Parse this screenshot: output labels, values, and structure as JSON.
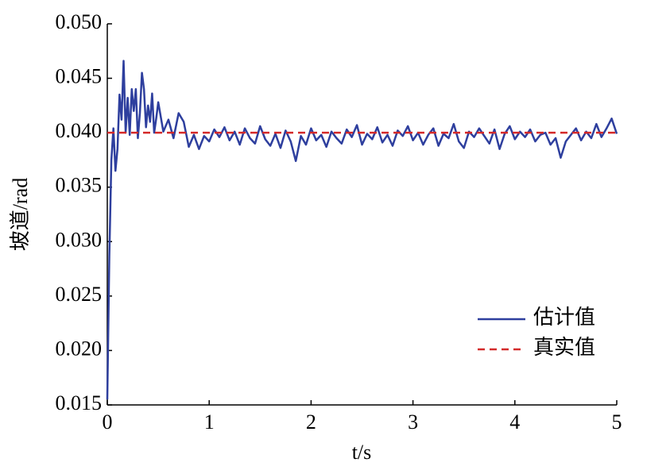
{
  "chart_data": {
    "type": "line",
    "xlabel": "t/s",
    "ylabel": "坡道/rad",
    "xlim": [
      0,
      5
    ],
    "xticks": [
      0,
      1,
      2,
      3,
      4,
      5
    ],
    "ylim": [
      0.015,
      0.05
    ],
    "yticks": [
      {
        "value": 0.015,
        "label": "0.015"
      },
      {
        "value": 0.02,
        "label": "0.020"
      },
      {
        "value": 0.025,
        "label": "0.025"
      },
      {
        "value": 0.03,
        "label": "0.030"
      },
      {
        "value": 0.035,
        "label": "0.035"
      },
      {
        "value": 0.04,
        "label": "0.040"
      },
      {
        "value": 0.045,
        "label": "0.045"
      },
      {
        "value": 0.05,
        "label": "0.050"
      }
    ],
    "grid": false,
    "legend": "lower right",
    "series": [
      {
        "name": "估计值",
        "color": "#2e3f9e",
        "style": "solid",
        "x": [
          0,
          0.02,
          0.04,
          0.06,
          0.08,
          0.1,
          0.12,
          0.14,
          0.16,
          0.18,
          0.2,
          0.22,
          0.24,
          0.26,
          0.28,
          0.3,
          0.32,
          0.34,
          0.36,
          0.38,
          0.4,
          0.42,
          0.44,
          0.46,
          0.48,
          0.5,
          0.55,
          0.6,
          0.65,
          0.7,
          0.75,
          0.8,
          0.85,
          0.9,
          0.95,
          1.0,
          1.05,
          1.1,
          1.15,
          1.2,
          1.25,
          1.3,
          1.35,
          1.4,
          1.45,
          1.5,
          1.55,
          1.6,
          1.65,
          1.7,
          1.75,
          1.8,
          1.85,
          1.9,
          1.95,
          2.0,
          2.05,
          2.1,
          2.15,
          2.2,
          2.25,
          2.3,
          2.35,
          2.4,
          2.45,
          2.5,
          2.55,
          2.6,
          2.65,
          2.7,
          2.75,
          2.8,
          2.85,
          2.9,
          2.95,
          3.0,
          3.05,
          3.1,
          3.15,
          3.2,
          3.25,
          3.3,
          3.35,
          3.4,
          3.45,
          3.5,
          3.55,
          3.6,
          3.65,
          3.7,
          3.75,
          3.8,
          3.85,
          3.9,
          3.95,
          4.0,
          4.05,
          4.1,
          4.15,
          4.2,
          4.25,
          4.3,
          4.35,
          4.4,
          4.45,
          4.5,
          4.55,
          4.6,
          4.65,
          4.7,
          4.75,
          4.8,
          4.85,
          4.9,
          4.95,
          5.0
        ],
        "values": [
          0.0155,
          0.0287,
          0.0375,
          0.0404,
          0.0365,
          0.0385,
          0.0435,
          0.0412,
          0.0466,
          0.04,
          0.0432,
          0.0398,
          0.044,
          0.042,
          0.044,
          0.0395,
          0.0418,
          0.0455,
          0.044,
          0.0405,
          0.0425,
          0.041,
          0.0436,
          0.04,
          0.0413,
          0.0428,
          0.0401,
          0.0412,
          0.0395,
          0.0418,
          0.041,
          0.0387,
          0.0398,
          0.0385,
          0.0397,
          0.0392,
          0.0403,
          0.0396,
          0.0405,
          0.0393,
          0.0401,
          0.0389,
          0.0404,
          0.0395,
          0.039,
          0.0406,
          0.0394,
          0.0388,
          0.0399,
          0.0386,
          0.0402,
          0.0392,
          0.0374,
          0.0397,
          0.0389,
          0.0404,
          0.0393,
          0.0398,
          0.0387,
          0.0401,
          0.0395,
          0.039,
          0.0403,
          0.0396,
          0.0407,
          0.0389,
          0.0399,
          0.0394,
          0.0405,
          0.0391,
          0.0398,
          0.0388,
          0.0402,
          0.0397,
          0.0406,
          0.0393,
          0.04,
          0.0389,
          0.0398,
          0.0404,
          0.0388,
          0.0399,
          0.0395,
          0.0408,
          0.0392,
          0.0386,
          0.0401,
          0.0396,
          0.0404,
          0.0397,
          0.039,
          0.0403,
          0.0385,
          0.0399,
          0.0406,
          0.0394,
          0.0401,
          0.0396,
          0.0403,
          0.0392,
          0.0398,
          0.04,
          0.0389,
          0.0395,
          0.0377,
          0.0392,
          0.0398,
          0.0404,
          0.0393,
          0.0401,
          0.0395,
          0.0408,
          0.0396,
          0.0404,
          0.0413,
          0.0399
        ]
      },
      {
        "name": "真实值",
        "color": "#d42a2a",
        "style": "dashed",
        "x": [
          0,
          5
        ],
        "values": [
          0.04,
          0.04
        ]
      }
    ]
  }
}
